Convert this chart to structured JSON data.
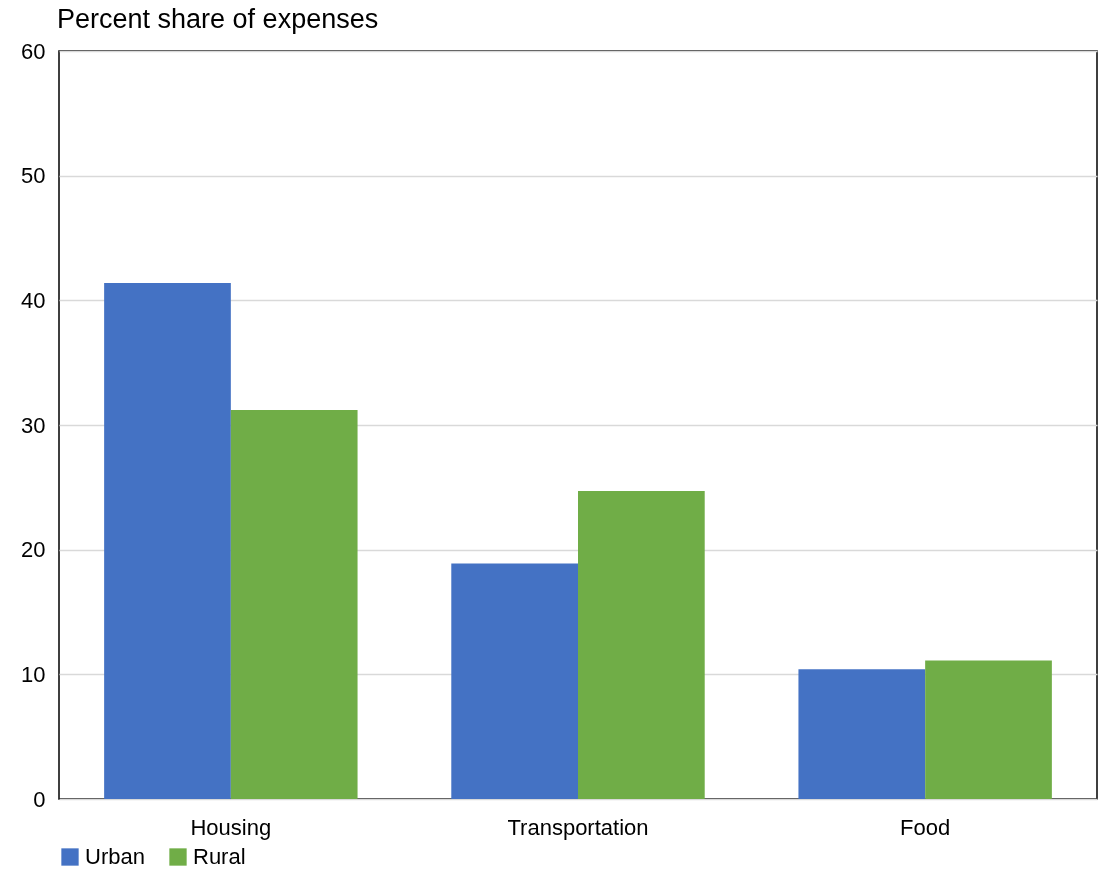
{
  "chart_data": {
    "type": "bar",
    "title": "Percent share of expenses",
    "categories": [
      "Housing",
      "Transportation",
      "Food"
    ],
    "series": [
      {
        "name": "Urban",
        "color": "#4472c4",
        "values": [
          41.4,
          18.9,
          10.4
        ]
      },
      {
        "name": "Rural",
        "color": "#70ad47",
        "values": [
          31.2,
          24.7,
          11.1
        ]
      }
    ],
    "ylim": [
      0,
      60
    ],
    "yticks": [
      0,
      10,
      20,
      30,
      40,
      50,
      60
    ],
    "grid": "y",
    "legend": "bottom"
  }
}
